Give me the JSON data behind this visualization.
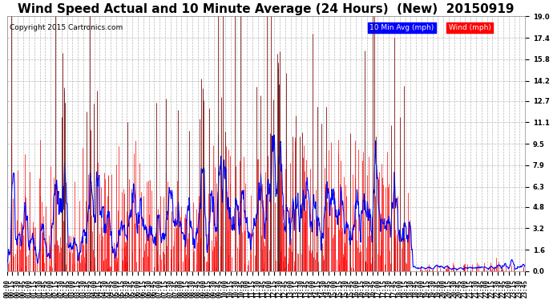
{
  "title": "Wind Speed Actual and 10 Minute Average (24 Hours)  (New)  20150919",
  "copyright": "Copyright 2015 Cartronics.com",
  "legend_10min_label": "10 Min Avg (mph)",
  "legend_wind_label": "Wind (mph)",
  "yticks": [
    0.0,
    1.6,
    3.2,
    4.8,
    6.3,
    7.9,
    9.5,
    11.1,
    12.7,
    14.2,
    15.8,
    17.4,
    19.0
  ],
  "ylim": [
    0.0,
    19.0
  ],
  "background_color": "#ffffff",
  "plot_bg_color": "#ffffff",
  "grid_color": "#b0b0b0",
  "red_color": "#ff0000",
  "blue_color": "#0000ff",
  "dark_color": "#222222",
  "title_fontsize": 11,
  "tick_fontsize": 6,
  "copyright_fontsize": 6.5
}
